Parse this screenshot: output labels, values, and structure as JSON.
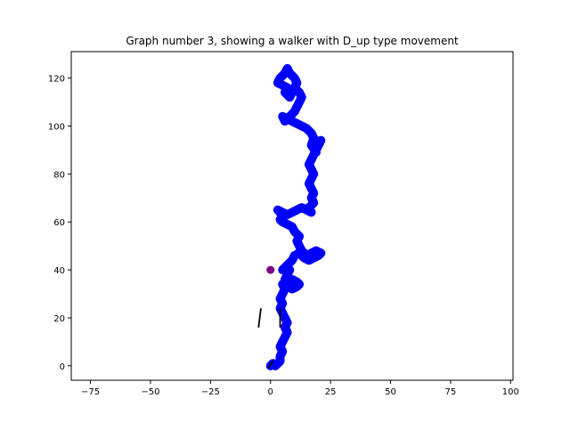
{
  "chart_data": {
    "type": "scatter",
    "title": "Graph number 3, showing a walker with D_up type movement",
    "xlabel": "",
    "ylabel": "",
    "xlim": [
      -83,
      101
    ],
    "ylim": [
      -6,
      131
    ],
    "x_ticks": [
      -75,
      -50,
      -25,
      0,
      25,
      50,
      75,
      100
    ],
    "y_ticks": [
      0,
      20,
      40,
      60,
      80,
      100,
      120
    ],
    "x_tick_labels": [
      "−75",
      "−50",
      "−25",
      "0",
      "25",
      "50",
      "75",
      "100"
    ],
    "y_tick_labels": [
      "0",
      "20",
      "40",
      "60",
      "80",
      "100",
      "120"
    ],
    "grid": false,
    "legend": "none",
    "walker_color": "#0000ff",
    "walker_path": [
      [
        0,
        0
      ],
      [
        1,
        1
      ],
      [
        2,
        0
      ],
      [
        3,
        1
      ],
      [
        4,
        2
      ],
      [
        4,
        4
      ],
      [
        5,
        6
      ],
      [
        4,
        8
      ],
      [
        5,
        10
      ],
      [
        6,
        12
      ],
      [
        7,
        14
      ],
      [
        6,
        16
      ],
      [
        7,
        18
      ],
      [
        6,
        20
      ],
      [
        5,
        22
      ],
      [
        4,
        24
      ],
      [
        5,
        26
      ],
      [
        4,
        28
      ],
      [
        5,
        30
      ],
      [
        6,
        32
      ],
      [
        5,
        34
      ],
      [
        7,
        35
      ],
      [
        9,
        36
      ],
      [
        11,
        35
      ],
      [
        12,
        34
      ],
      [
        11,
        33
      ],
      [
        9,
        32
      ],
      [
        7,
        34
      ],
      [
        6,
        36
      ],
      [
        7,
        38
      ],
      [
        8,
        40
      ],
      [
        6,
        41
      ],
      [
        5,
        40
      ],
      [
        7,
        42
      ],
      [
        9,
        44
      ],
      [
        10,
        46
      ],
      [
        12,
        47
      ],
      [
        14,
        45
      ],
      [
        16,
        44
      ],
      [
        18,
        45
      ],
      [
        20,
        46
      ],
      [
        21,
        47
      ],
      [
        19,
        48
      ],
      [
        17,
        47
      ],
      [
        15,
        46
      ],
      [
        13,
        48
      ],
      [
        12,
        50
      ],
      [
        11,
        52
      ],
      [
        12,
        54
      ],
      [
        10,
        56
      ],
      [
        9,
        58
      ],
      [
        7,
        59
      ],
      [
        5,
        60
      ],
      [
        4,
        61
      ],
      [
        5,
        62
      ],
      [
        4,
        64
      ],
      [
        3,
        65
      ],
      [
        5,
        64
      ],
      [
        7,
        63
      ],
      [
        9,
        64
      ],
      [
        11,
        65
      ],
      [
        13,
        66
      ],
      [
        15,
        65
      ],
      [
        17,
        64
      ],
      [
        16,
        66
      ],
      [
        18,
        68
      ],
      [
        17,
        70
      ],
      [
        18,
        72
      ],
      [
        17,
        74
      ],
      [
        16,
        76
      ],
      [
        17,
        78
      ],
      [
        18,
        80
      ],
      [
        17,
        82
      ],
      [
        16,
        84
      ],
      [
        17,
        86
      ],
      [
        18,
        88
      ],
      [
        19,
        90
      ],
      [
        20,
        92
      ],
      [
        21,
        94
      ],
      [
        19,
        93
      ],
      [
        18,
        91
      ],
      [
        19,
        89
      ],
      [
        17,
        92
      ],
      [
        18,
        95
      ],
      [
        17,
        97
      ],
      [
        15,
        99
      ],
      [
        13,
        100
      ],
      [
        11,
        101
      ],
      [
        9,
        102
      ],
      [
        7,
        103
      ],
      [
        5,
        104
      ],
      [
        6,
        102
      ],
      [
        8,
        104
      ],
      [
        10,
        106
      ],
      [
        11,
        108
      ],
      [
        12,
        110
      ],
      [
        13,
        112
      ],
      [
        12,
        114
      ],
      [
        10,
        116
      ],
      [
        11,
        118
      ],
      [
        10,
        120
      ],
      [
        8,
        122
      ],
      [
        7,
        124
      ],
      [
        6,
        122
      ],
      [
        4,
        120
      ],
      [
        3,
        118
      ],
      [
        5,
        117
      ],
      [
        7,
        116
      ],
      [
        6,
        114
      ],
      [
        8,
        112
      ],
      [
        9,
        114
      ],
      [
        10,
        116
      ]
    ],
    "marker": {
      "x": 0,
      "y": 40,
      "color": "#800080"
    },
    "line_segments": [
      {
        "from": [
          -5,
          16
        ],
        "to": [
          -4,
          24
        ],
        "color": "#000000"
      },
      {
        "from": [
          4,
          16
        ],
        "to": [
          4,
          24
        ],
        "color": "#000000"
      },
      {
        "from": [
          -1,
          -1
        ],
        "to": [
          1,
          2
        ],
        "color": "#000000"
      }
    ]
  }
}
